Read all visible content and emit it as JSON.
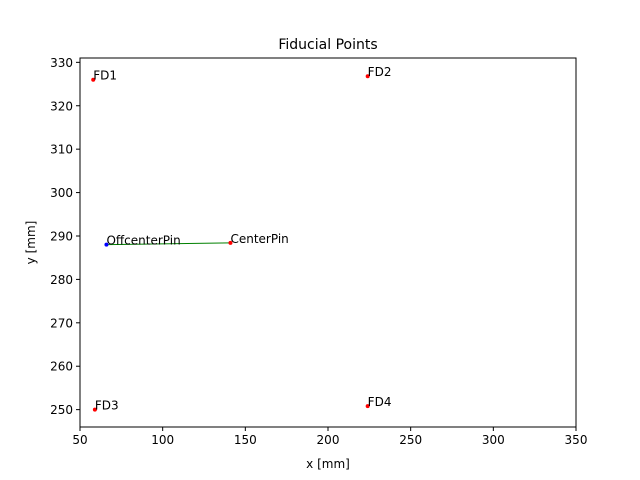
{
  "chart_data": {
    "type": "scatter",
    "title": "Fiducial Points",
    "xlabel": "x [mm]",
    "ylabel": "y [mm]",
    "xlim": [
      50,
      350
    ],
    "ylim": [
      246,
      331
    ],
    "xticks": [
      50,
      100,
      150,
      200,
      250,
      300,
      350
    ],
    "yticks": [
      250,
      260,
      270,
      280,
      290,
      300,
      310,
      320,
      330
    ],
    "grid": false,
    "points": [
      {
        "label": "FD1",
        "x": 58,
        "y": 326,
        "color": "#ff0000"
      },
      {
        "label": "FD2",
        "x": 224,
        "y": 326.8,
        "color": "#ff0000"
      },
      {
        "label": "FD3",
        "x": 59,
        "y": 250,
        "color": "#ff0000"
      },
      {
        "label": "FD4",
        "x": 224,
        "y": 250.8,
        "color": "#ff0000"
      },
      {
        "label": "OffcenterPin",
        "x": 66,
        "y": 288,
        "color": "#0000ff"
      },
      {
        "label": "CenterPin",
        "x": 141,
        "y": 288.4,
        "color": "#ff0000"
      }
    ],
    "segments": [
      {
        "from": "OffcenterPin",
        "to": "CenterPin",
        "color": "#008000"
      }
    ]
  }
}
